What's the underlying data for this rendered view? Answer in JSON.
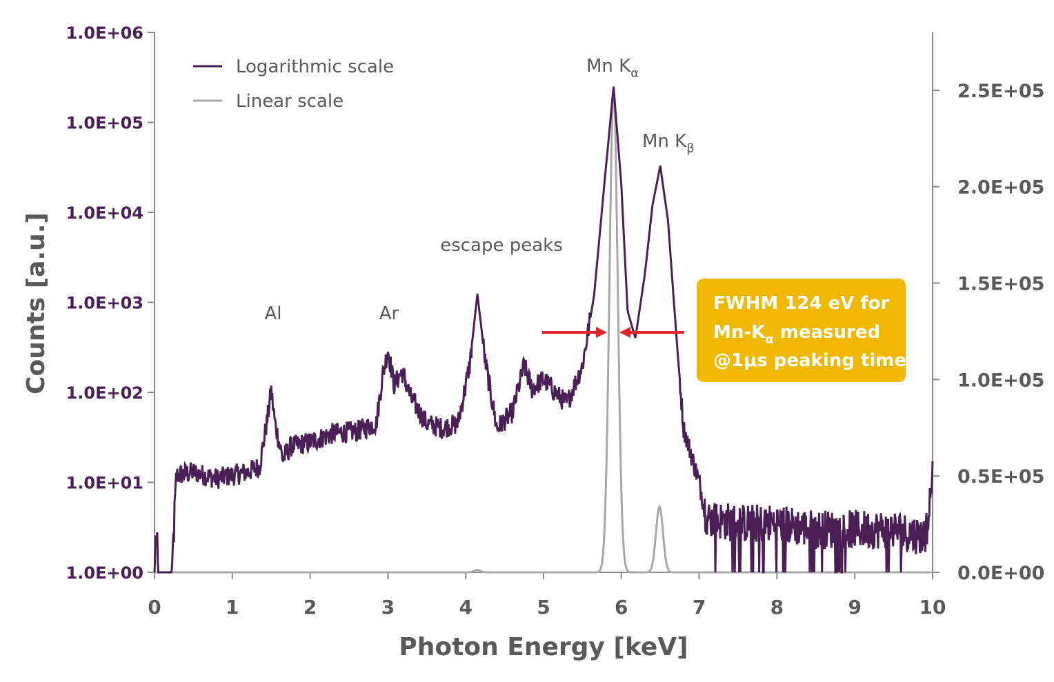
{
  "colors": {
    "log_series": "#4a1f55",
    "lin_series": "#a8a8a8",
    "axis": "#888888",
    "left_tick_text": "#4a1f55",
    "right_tick_text": "#5a5a5a",
    "axis_title_text": "#595959",
    "annotation_text": "#595959",
    "arrow": "#e0262b",
    "box_bg": "#f0b800",
    "box_text": "#ffffff"
  },
  "chart_data": {
    "type": "line",
    "xlabel": "Photon Energy [keV]",
    "ylabel": "Counts [a.u.]",
    "xlim": [
      0,
      10
    ],
    "x_ticks": [
      "0",
      "1",
      "2",
      "3",
      "4",
      "5",
      "6",
      "7",
      "8",
      "9",
      "10"
    ],
    "y_left": {
      "scale": "log",
      "lim": [
        1,
        1000000
      ],
      "ticks": [
        "1.0E+00",
        "1.0E+01",
        "1.0E+02",
        "1.0E+03",
        "1.0E+04",
        "1.0E+05",
        "1.0E+06"
      ]
    },
    "y_right": {
      "scale": "linear",
      "lim": [
        0,
        280000
      ],
      "ticks": [
        "0.0E+00",
        "0.5E+05",
        "1.0E+05",
        "1.5E+05",
        "2.0E+05",
        "2.5E+05"
      ],
      "tick_values": [
        0,
        50000,
        100000,
        150000,
        200000,
        250000
      ]
    },
    "legend_position": "top-left",
    "series": [
      {
        "name": "Logarithmic scale",
        "axis": "left",
        "baseline": [
          [
            0.0,
            1
          ],
          [
            0.02,
            3
          ],
          [
            0.05,
            1
          ],
          [
            0.22,
            1
          ],
          [
            0.25,
            3
          ],
          [
            0.28,
            12
          ],
          [
            0.5,
            13
          ],
          [
            0.8,
            11
          ],
          [
            1.0,
            12
          ],
          [
            1.2,
            13
          ],
          [
            1.35,
            15
          ],
          [
            1.45,
            50
          ],
          [
            1.5,
            105
          ],
          [
            1.55,
            45
          ],
          [
            1.65,
            18
          ],
          [
            1.75,
            25
          ],
          [
            2.0,
            28
          ],
          [
            2.3,
            35
          ],
          [
            2.6,
            37
          ],
          [
            2.85,
            45
          ],
          [
            2.93,
            150
          ],
          [
            3.0,
            300
          ],
          [
            3.08,
            120
          ],
          [
            3.18,
            170
          ],
          [
            3.3,
            85
          ],
          [
            3.5,
            45
          ],
          [
            3.7,
            40
          ],
          [
            3.9,
            45
          ],
          [
            4.05,
            200
          ],
          [
            4.15,
            1250
          ],
          [
            4.25,
            220
          ],
          [
            4.4,
            40
          ],
          [
            4.6,
            60
          ],
          [
            4.75,
            200
          ],
          [
            4.85,
            110
          ],
          [
            5.0,
            140
          ],
          [
            5.2,
            90
          ],
          [
            5.3,
            75
          ],
          [
            5.5,
            200
          ],
          [
            5.65,
            1200
          ],
          [
            5.78,
            20000
          ],
          [
            5.9,
            250000
          ],
          [
            6.0,
            20000
          ],
          [
            6.08,
            800
          ],
          [
            6.18,
            400
          ],
          [
            6.3,
            2000
          ],
          [
            6.4,
            12000
          ],
          [
            6.5,
            33000
          ],
          [
            6.6,
            8000
          ],
          [
            6.72,
            300
          ],
          [
            6.8,
            40
          ],
          [
            7.0,
            10
          ],
          [
            7.1,
            4
          ],
          [
            7.5,
            3.5
          ],
          [
            8.0,
            3.5
          ],
          [
            8.5,
            3
          ],
          [
            9.0,
            3
          ],
          [
            9.5,
            3
          ],
          [
            9.9,
            2.5
          ],
          [
            9.95,
            4
          ],
          [
            10.0,
            14
          ]
        ]
      },
      {
        "name": "Linear scale",
        "axis": "right",
        "peaks": [
          {
            "center": 5.9,
            "height": 250000,
            "sigma": 0.053
          },
          {
            "center": 6.49,
            "height": 34000,
            "sigma": 0.045
          },
          {
            "center": 4.15,
            "height": 1250,
            "sigma": 0.04
          }
        ]
      }
    ],
    "annotations": {
      "al": "Al",
      "ar": "Ar",
      "escape": "escape peaks",
      "mnka_base": "Mn K",
      "mnka_sub": "α",
      "mnkb_base": "Mn K",
      "mnkb_sub": "β"
    },
    "fwhm_box": {
      "line1": "FWHM 124 eV for",
      "line2_pre": "Mn-K",
      "line2_sub": "α",
      "line2_post": " measured",
      "line3": "@1μs peaking time"
    }
  }
}
